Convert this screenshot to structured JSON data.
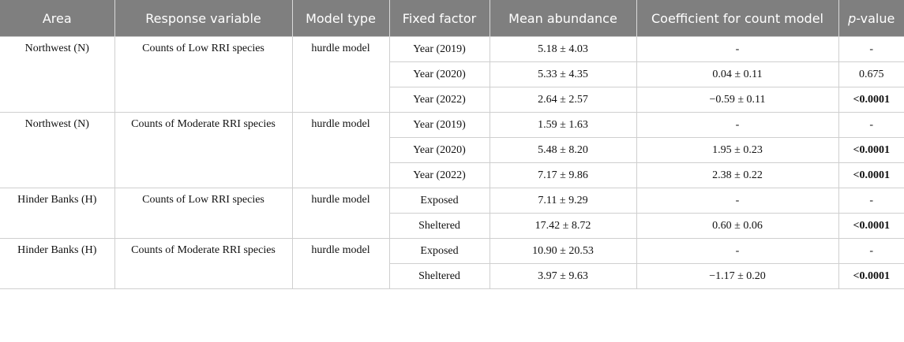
{
  "header": {
    "columns": [
      "Area",
      "Response variable",
      "Model type",
      "Fixed factor",
      "Mean abundance",
      "Coefficient for count model",
      {
        "italic": "p",
        "rest": "-value"
      }
    ]
  },
  "groups": [
    {
      "area": "Northwest (N)",
      "response": "Counts of Low RRI species",
      "model": "hurdle model",
      "rows": [
        {
          "factor": "Year (2019)",
          "mean": "5.18 ± 4.03",
          "coef": "-",
          "p": "-",
          "p_bold": false
        },
        {
          "factor": "Year (2020)",
          "mean": "5.33 ± 4.35",
          "coef": "0.04 ± 0.11",
          "p": "0.675",
          "p_bold": false
        },
        {
          "factor": "Year (2022)",
          "mean": "2.64 ± 2.57",
          "coef": "−0.59 ± 0.11",
          "p": "<0.0001",
          "p_bold": true
        }
      ]
    },
    {
      "area": "Northwest (N)",
      "response": "Counts of Moderate RRI species",
      "model": "hurdle model",
      "rows": [
        {
          "factor": "Year (2019)",
          "mean": "1.59 ± 1.63",
          "coef": "-",
          "p": "-",
          "p_bold": false
        },
        {
          "factor": "Year (2020)",
          "mean": "5.48 ± 8.20",
          "coef": "1.95 ± 0.23",
          "p": "<0.0001",
          "p_bold": true
        },
        {
          "factor": "Year (2022)",
          "mean": "7.17 ± 9.86",
          "coef": "2.38 ± 0.22",
          "p": "<0.0001",
          "p_bold": true
        }
      ]
    },
    {
      "area": "Hinder Banks (H)",
      "response": "Counts of Low RRI species",
      "model": "hurdle model",
      "rows": [
        {
          "factor": "Exposed",
          "mean": "7.11 ± 9.29",
          "coef": "-",
          "p": "-",
          "p_bold": false
        },
        {
          "factor": "Sheltered",
          "mean": "17.42 ± 8.72",
          "coef": "0.60 ± 0.06",
          "p": "<0.0001",
          "p_bold": true
        }
      ]
    },
    {
      "area": "Hinder Banks (H)",
      "response": "Counts of Moderate RRI species",
      "model": "hurdle model",
      "rows": [
        {
          "factor": "Exposed",
          "mean": "10.90 ± 20.53",
          "coef": "-",
          "p": "-",
          "p_bold": false
        },
        {
          "factor": "Sheltered",
          "mean": "3.97 ± 9.63",
          "coef": "−1.17 ± 0.20",
          "p": "<0.0001",
          "p_bold": true
        }
      ]
    }
  ]
}
